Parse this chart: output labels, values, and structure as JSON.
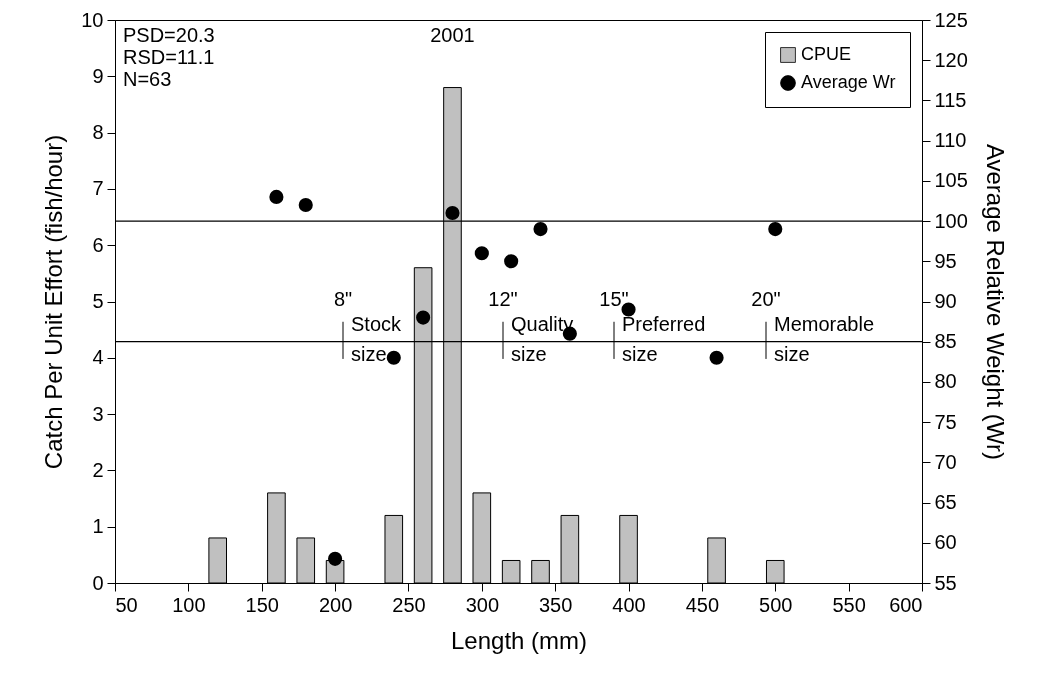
{
  "chart_data": {
    "type": "bar",
    "title": "2001",
    "xlabel": "Length (mm)",
    "ylabel": "Catch Per Unit Effort (fish/hour)",
    "y2label": "Average Relative Weight (Wr)",
    "x": [
      120,
      160,
      180,
      200,
      240,
      260,
      280,
      300,
      320,
      340,
      360,
      400,
      460,
      500
    ],
    "series": [
      {
        "name": "CPUE",
        "color": "#c0c0c0",
        "values": [
          0.8,
          1.6,
          0.8,
          0.4,
          1.2,
          5.6,
          8.8,
          1.6,
          0.4,
          0.4,
          1.2,
          1.2,
          0.8,
          0.4
        ]
      },
      {
        "name": "Average Wr",
        "type": "scatter",
        "axis": "y2",
        "color": "#000000",
        "x": [
          160,
          180,
          200,
          240,
          260,
          280,
          300,
          320,
          340,
          360,
          400,
          460,
          500
        ],
        "values": [
          103,
          102,
          58,
          83,
          88,
          101,
          96,
          95,
          99,
          86,
          89,
          83,
          99
        ]
      }
    ],
    "xlim": [
      50,
      600
    ],
    "xticks": [
      50,
      100,
      150,
      200,
      250,
      300,
      350,
      400,
      450,
      500,
      550,
      600
    ],
    "ylim": [
      0,
      10
    ],
    "yticks": [
      0,
      1,
      2,
      3,
      4,
      5,
      6,
      7,
      8,
      9,
      10
    ],
    "y2lim": [
      55,
      125
    ],
    "y2ticks": [
      55,
      60,
      65,
      70,
      75,
      80,
      85,
      90,
      95,
      100,
      105,
      110,
      115,
      120,
      125
    ],
    "ref_lines": [
      {
        "axis": "y2",
        "value": 100
      },
      {
        "axis": "y2",
        "value": 85
      }
    ],
    "annotations": [
      "PSD=20.3",
      "RSD=11.1",
      "N=63",
      "8\"",
      "Stock size",
      "12\"",
      "Quality size",
      "15\"",
      "Preferred size",
      "20\"",
      "Memorable size"
    ],
    "legend": "top right",
    "marker": "circle",
    "grid": false
  }
}
